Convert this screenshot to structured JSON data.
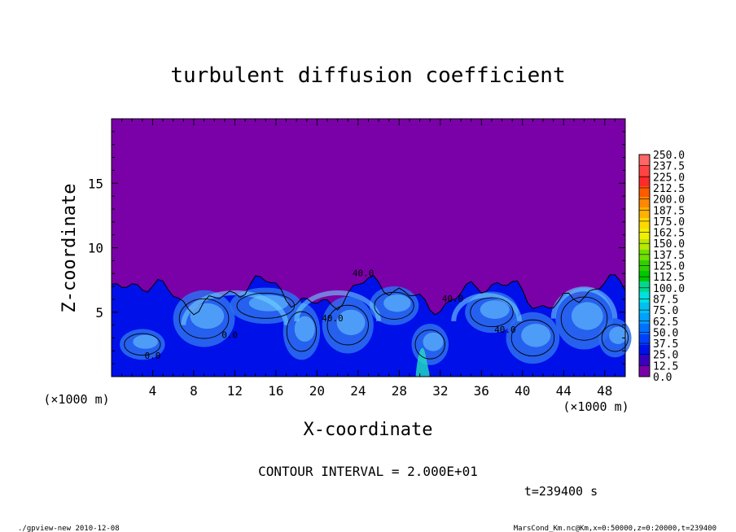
{
  "chart_data": {
    "type": "heatmap",
    "title": "turbulent diffusion coefficient",
    "xlabel": "X-coordinate",
    "ylabel": "Z-coordinate",
    "x_unit_left": "(×1000 m)",
    "x_unit_right": "(×1000 m)",
    "x_ticks": [
      "4",
      "8",
      "12",
      "16",
      "20",
      "24",
      "28",
      "32",
      "36",
      "40",
      "44",
      "48"
    ],
    "y_ticks": [
      "5",
      "10",
      "15"
    ],
    "xlim": [
      0,
      50
    ],
    "ylim": [
      0,
      20
    ],
    "contour_interval_text": "CONTOUR INTERVAL = 2.000E+01",
    "time_text": "t=239400 s",
    "contour_labels": [
      "0.0",
      "0.0",
      "40.0",
      "40.0",
      "40.0",
      "40.0"
    ],
    "colorbar": {
      "labels": [
        "250.0",
        "237.5",
        "225.0",
        "212.5",
        "200.0",
        "187.5",
        "175.0",
        "162.5",
        "150.0",
        "137.5",
        "125.0",
        "112.5",
        "100.0",
        "87.5",
        "75.0",
        "62.5",
        "50.0",
        "37.5",
        "25.0",
        "12.5",
        "0.0"
      ],
      "colors": [
        "#ff6666",
        "#ff4444",
        "#ff2a2a",
        "#ff5a00",
        "#ff8800",
        "#ffb000",
        "#ffd800",
        "#f0f000",
        "#b8e800",
        "#70e000",
        "#30d000",
        "#00c800",
        "#00d890",
        "#00e0e0",
        "#00c0f0",
        "#00a0ff",
        "#0070ff",
        "#0040ff",
        "#0010e8",
        "#3a00c0",
        "#7a00a8"
      ]
    },
    "background_color": "#7a00a8",
    "field_colors": {
      "low": "#0010e8",
      "mid": "#2b6ff0",
      "high": "#70d0ff",
      "peak": "#20e0c0"
    }
  },
  "footer": {
    "left": "./gpview-new   2010-12-08",
    "right": "MarsCond_Km.nc@Km,x=0:50000,z=0:20000,t=239400"
  }
}
